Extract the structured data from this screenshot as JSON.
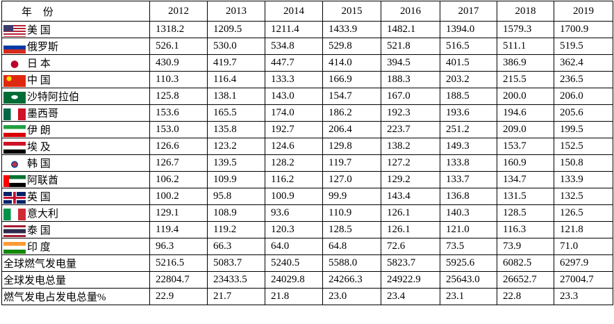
{
  "table": {
    "header": [
      "年 份",
      "2012",
      "2013",
      "2014",
      "2015",
      "2016",
      "2017",
      "2018",
      "2019"
    ],
    "rows": [
      [
        "美 国",
        "1318.2",
        "1209.5",
        "1211.4",
        "1433.9",
        "1482.1",
        "1394.0",
        "1579.3",
        "1700.9"
      ],
      [
        "俄罗斯",
        "526.1",
        "530.0",
        "534.8",
        "529.8",
        "521.8",
        "516.5",
        "511.1",
        "519.5"
      ],
      [
        "日 本",
        "430.9",
        "419.7",
        "447.7",
        "414.0",
        "394.5",
        "401.5",
        "386.9",
        "362.4"
      ],
      [
        "中 国",
        "110.3",
        "116.4",
        "133.3",
        "166.9",
        "188.3",
        "203.2",
        "215.5",
        "236.5"
      ],
      [
        "沙特阿拉伯",
        "125.8",
        "138.1",
        "143.0",
        "154.7",
        "167.0",
        "188.5",
        "200.0",
        "206.0"
      ],
      [
        "墨西哥",
        "153.6",
        "165.5",
        "174.0",
        "186.2",
        "192.3",
        "193.6",
        "194.6",
        "205.6"
      ],
      [
        "伊 朗",
        "153.0",
        "135.8",
        "192.7",
        "206.4",
        "223.7",
        "251.2",
        "209.0",
        "199.5"
      ],
      [
        "埃 及",
        "126.6",
        "123.2",
        "124.6",
        "129.8",
        "138.2",
        "149.3",
        "153.7",
        "152.5"
      ],
      [
        "韩 国",
        "126.7",
        "139.5",
        "128.2",
        "119.7",
        "127.2",
        "133.8",
        "160.9",
        "150.8"
      ],
      [
        "阿联酋",
        "106.2",
        "109.9",
        "116.2",
        "127.0",
        "129.2",
        "133.7",
        "134.7",
        "133.9"
      ],
      [
        "英 国",
        "100.2",
        "95.8",
        "100.9",
        "99.9",
        "143.4",
        "136.8",
        "131.5",
        "132.5"
      ],
      [
        "意大利",
        "129.1",
        "108.9",
        "93.6",
        "110.9",
        "126.1",
        "140.3",
        "128.5",
        "126.5"
      ],
      [
        "泰 国",
        "119.4",
        "119.2",
        "120.3",
        "128.5",
        "126.1",
        "121.0",
        "116.3",
        "121.8"
      ],
      [
        "印 度",
        "96.3",
        "66.3",
        "64.0",
        "64.8",
        "72.6",
        "73.5",
        "73.9",
        "71.0"
      ],
      [
        "全球燃气发电量",
        "5216.5",
        "5083.7",
        "5240.5",
        "5588.0",
        "5823.7",
        "5925.6",
        "6082.5",
        "6297.9"
      ],
      [
        "全球发电总量",
        "22804.7",
        "23433.5",
        "24029.8",
        "24266.3",
        "24922.9",
        "25643.0",
        "26652.7",
        "27004.7"
      ],
      [
        "燃气发电占发电总量%",
        "22.9",
        "21.7",
        "21.8",
        "23.0",
        "23.4",
        "23.1",
        "22.8",
        "23.3"
      ]
    ]
  }
}
